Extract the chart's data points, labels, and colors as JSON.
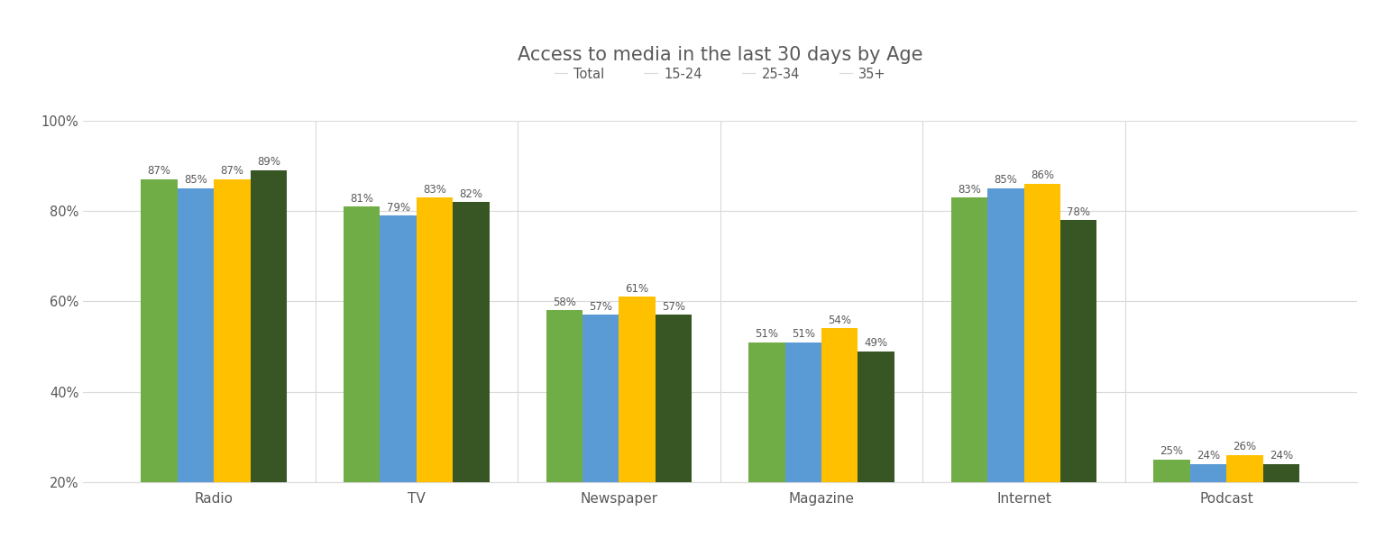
{
  "title": "Access to media in the last 30 days by Age",
  "categories": [
    "Radio",
    "TV",
    "Newspaper",
    "Magazine",
    "Internet",
    "Podcast"
  ],
  "series": {
    "Total": [
      87,
      81,
      58,
      51,
      83,
      25
    ],
    "15-24": [
      85,
      79,
      57,
      51,
      85,
      24
    ],
    "25-34": [
      87,
      83,
      61,
      54,
      86,
      26
    ],
    "35+": [
      89,
      82,
      57,
      49,
      78,
      24
    ]
  },
  "legend_labels": [
    "Total",
    "15-24",
    "25-34",
    "35+"
  ],
  "colors": {
    "Total": "#70AD47",
    "15-24": "#5B9BD5",
    "25-34": "#FFC000",
    "35+": "#375623"
  },
  "ylim": [
    20,
    100
  ],
  "ymin": 20,
  "yticks": [
    20,
    40,
    60,
    80,
    100
  ],
  "ytick_labels": [
    "20%",
    "40%",
    "60%",
    "80%",
    "100%"
  ],
  "bar_width": 0.18,
  "label_fontsize": 8.5,
  "axis_label_fontsize": 11,
  "title_fontsize": 15,
  "legend_fontsize": 10.5,
  "tick_fontsize": 10.5,
  "background_color": "#FFFFFF",
  "text_color": "#595959",
  "grid_color": "#D9D9D9"
}
